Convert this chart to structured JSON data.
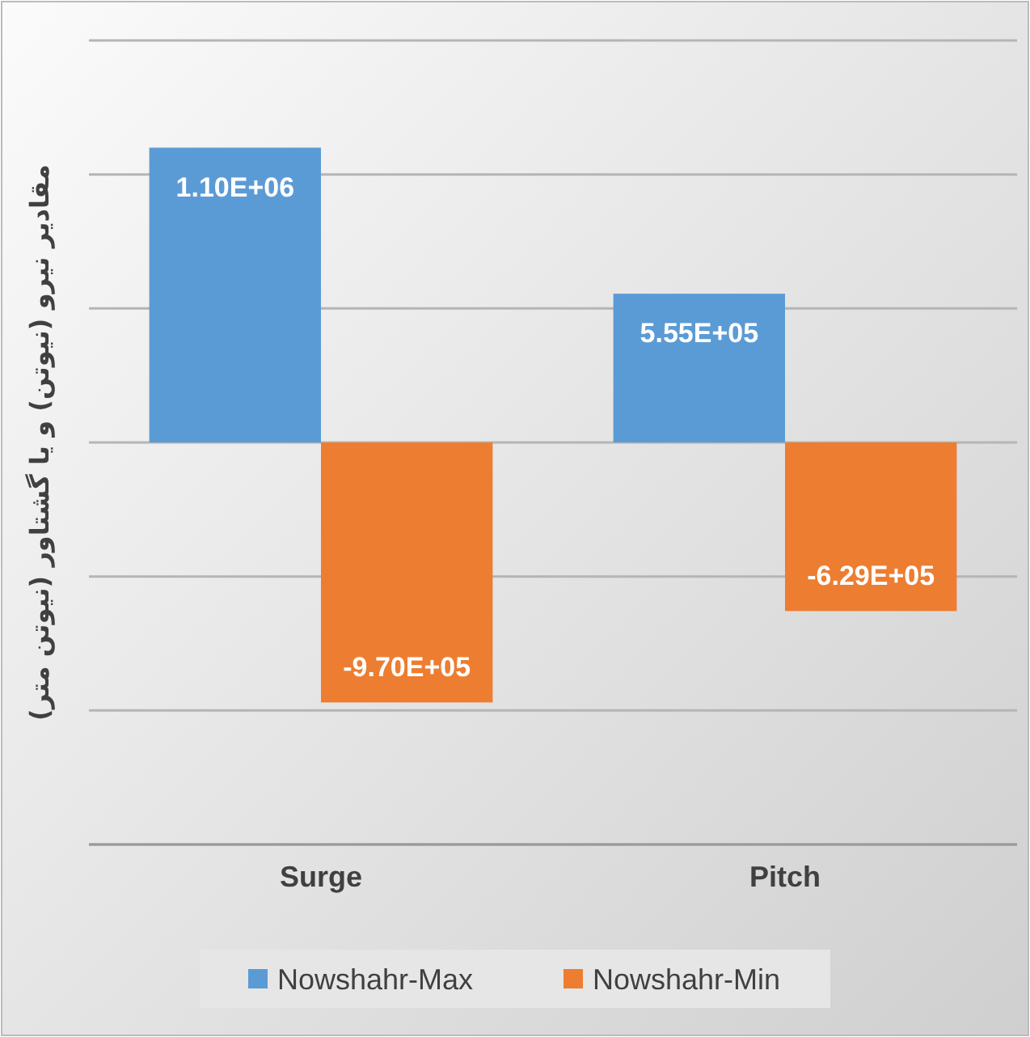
{
  "chart_data": {
    "type": "bar",
    "ylabel": "مقادیر نیرو (نیوتن) و یا گشتاور (نیوتن متر)",
    "categories": [
      "Surge",
      "Pitch"
    ],
    "series": [
      {
        "name": "Nowshahr-Max",
        "color": "#5b9bd5",
        "values": [
          1100000,
          555000
        ],
        "value_labels": [
          "1.10E+06",
          "5.55E+05"
        ]
      },
      {
        "name": "Nowshahr-Min",
        "color": "#ed7d31",
        "values": [
          -970000,
          -629000
        ],
        "value_labels": [
          "-9.70E+05",
          "-6.29E+05"
        ]
      }
    ],
    "ylim": [
      -1500000,
      1500000
    ],
    "yticks": [
      {
        "value": -1500000,
        "label": null
      },
      {
        "value": -1000000,
        "label": null
      },
      {
        "value": -500000,
        "label": null
      },
      {
        "value": 0,
        "label": null
      },
      {
        "value": 500000,
        "label": null
      },
      {
        "value": 1000000,
        "label": null
      },
      {
        "value": 1500000,
        "label": null
      }
    ],
    "tick_labels": "x",
    "grid": true,
    "legend": "bottom"
  }
}
